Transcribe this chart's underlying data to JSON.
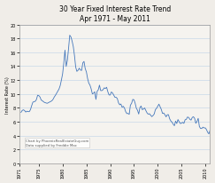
{
  "title_line1": "30 Year Fixed Interest Rate Trend",
  "title_line2": "Apr 1971 - May 2011",
  "ylabel": "Interest Rate (%)",
  "xlim_years": [
    1971,
    2011
  ],
  "ylim": [
    0,
    20
  ],
  "yticks": [
    0,
    2,
    4,
    6,
    8,
    10,
    12,
    14,
    16,
    18,
    20
  ],
  "xticks": [
    1971,
    1975,
    1980,
    1985,
    1990,
    1995,
    2000,
    2005,
    2010
  ],
  "line_color": "#4477bb",
  "bg_color": "#f0ede8",
  "plot_bg_color": "#f5f3ef",
  "annotation1": "Chart by PhoenixRealEstateGuy.com",
  "annotation2": "Data supplied by Freddie Mac",
  "grid_color": "#c8d8e8",
  "data_points": [
    [
      1971.25,
      7.33
    ],
    [
      1971.5,
      7.6
    ],
    [
      1971.75,
      7.7
    ],
    [
      1972.0,
      7.6
    ],
    [
      1972.25,
      7.38
    ],
    [
      1972.5,
      7.5
    ],
    [
      1972.75,
      7.44
    ],
    [
      1973.0,
      7.44
    ],
    [
      1973.25,
      7.73
    ],
    [
      1973.5,
      8.3
    ],
    [
      1973.75,
      8.8
    ],
    [
      1974.0,
      8.88
    ],
    [
      1974.25,
      8.92
    ],
    [
      1974.5,
      9.19
    ],
    [
      1974.75,
      9.8
    ],
    [
      1975.0,
      9.75
    ],
    [
      1975.25,
      9.54
    ],
    [
      1975.5,
      9.1
    ],
    [
      1975.75,
      9.01
    ],
    [
      1976.0,
      8.85
    ],
    [
      1976.25,
      8.75
    ],
    [
      1976.5,
      8.7
    ],
    [
      1976.75,
      8.64
    ],
    [
      1977.0,
      8.72
    ],
    [
      1977.25,
      8.82
    ],
    [
      1977.5,
      8.9
    ],
    [
      1977.75,
      9.01
    ],
    [
      1978.0,
      9.22
    ],
    [
      1978.25,
      9.55
    ],
    [
      1978.5,
      9.8
    ],
    [
      1978.75,
      10.1
    ],
    [
      1979.0,
      10.38
    ],
    [
      1979.25,
      10.7
    ],
    [
      1979.5,
      11.2
    ],
    [
      1979.75,
      12.0
    ],
    [
      1980.0,
      12.88
    ],
    [
      1980.25,
      14.45
    ],
    [
      1980.5,
      16.3
    ],
    [
      1980.75,
      13.95
    ],
    [
      1981.0,
      14.8
    ],
    [
      1981.25,
      16.52
    ],
    [
      1981.5,
      18.45
    ],
    [
      1981.75,
      18.2
    ],
    [
      1982.0,
      17.6
    ],
    [
      1982.25,
      16.8
    ],
    [
      1982.5,
      15.5
    ],
    [
      1982.75,
      13.85
    ],
    [
      1983.0,
      13.24
    ],
    [
      1983.25,
      13.4
    ],
    [
      1983.5,
      13.7
    ],
    [
      1983.75,
      13.43
    ],
    [
      1984.0,
      13.38
    ],
    [
      1984.25,
      14.47
    ],
    [
      1984.5,
      14.67
    ],
    [
      1984.75,
      13.64
    ],
    [
      1985.0,
      13.17
    ],
    [
      1985.25,
      12.22
    ],
    [
      1985.5,
      11.55
    ],
    [
      1985.75,
      11.26
    ],
    [
      1986.0,
      10.73
    ],
    [
      1986.25,
      10.0
    ],
    [
      1986.5,
      10.08
    ],
    [
      1986.75,
      10.3
    ],
    [
      1987.0,
      9.2
    ],
    [
      1987.25,
      10.35
    ],
    [
      1987.5,
      10.58
    ],
    [
      1987.75,
      11.26
    ],
    [
      1988.0,
      10.47
    ],
    [
      1988.25,
      10.47
    ],
    [
      1988.5,
      10.6
    ],
    [
      1988.75,
      10.87
    ],
    [
      1989.0,
      10.77
    ],
    [
      1989.25,
      10.95
    ],
    [
      1989.5,
      10.32
    ],
    [
      1989.75,
      9.85
    ],
    [
      1990.0,
      9.83
    ],
    [
      1990.25,
      10.27
    ],
    [
      1990.5,
      10.13
    ],
    [
      1990.75,
      9.8
    ],
    [
      1991.0,
      9.5
    ],
    [
      1991.25,
      9.51
    ],
    [
      1991.5,
      9.32
    ],
    [
      1991.75,
      8.71
    ],
    [
      1992.0,
      8.43
    ],
    [
      1992.25,
      8.54
    ],
    [
      1992.5,
      8.08
    ],
    [
      1992.75,
      8.21
    ],
    [
      1993.0,
      7.96
    ],
    [
      1993.25,
      7.45
    ],
    [
      1993.5,
      7.16
    ],
    [
      1993.75,
      7.18
    ],
    [
      1994.0,
      7.05
    ],
    [
      1994.25,
      8.37
    ],
    [
      1994.5,
      8.63
    ],
    [
      1994.75,
      9.2
    ],
    [
      1995.0,
      9.15
    ],
    [
      1995.25,
      8.64
    ],
    [
      1995.5,
      7.93
    ],
    [
      1995.75,
      7.63
    ],
    [
      1996.0,
      7.09
    ],
    [
      1996.25,
      8.02
    ],
    [
      1996.5,
      8.25
    ],
    [
      1996.75,
      7.72
    ],
    [
      1997.0,
      7.82
    ],
    [
      1997.25,
      7.96
    ],
    [
      1997.5,
      7.59
    ],
    [
      1997.75,
      7.26
    ],
    [
      1998.0,
      7.07
    ],
    [
      1998.25,
      7.14
    ],
    [
      1998.5,
      6.94
    ],
    [
      1998.75,
      6.72
    ],
    [
      1999.0,
      6.87
    ],
    [
      1999.25,
      7.09
    ],
    [
      1999.5,
      7.72
    ],
    [
      1999.75,
      7.92
    ],
    [
      2000.0,
      8.21
    ],
    [
      2000.25,
      8.52
    ],
    [
      2000.5,
      8.15
    ],
    [
      2000.75,
      7.75
    ],
    [
      2001.0,
      7.18
    ],
    [
      2001.25,
      7.24
    ],
    [
      2001.5,
      7.0
    ],
    [
      2001.75,
      6.69
    ],
    [
      2002.0,
      6.99
    ],
    [
      2002.25,
      7.0
    ],
    [
      2002.5,
      6.41
    ],
    [
      2002.75,
      6.09
    ],
    [
      2003.0,
      5.92
    ],
    [
      2003.25,
      5.62
    ],
    [
      2003.5,
      5.41
    ],
    [
      2003.75,
      6.07
    ],
    [
      2004.0,
      5.73
    ],
    [
      2004.25,
      6.3
    ],
    [
      2004.5,
      5.98
    ],
    [
      2004.75,
      5.72
    ],
    [
      2005.0,
      5.78
    ],
    [
      2005.25,
      5.9
    ],
    [
      2005.5,
      5.75
    ],
    [
      2005.75,
      6.27
    ],
    [
      2006.0,
      6.32
    ],
    [
      2006.25,
      6.66
    ],
    [
      2006.5,
      6.6
    ],
    [
      2006.75,
      6.33
    ],
    [
      2007.0,
      6.22
    ],
    [
      2007.25,
      6.6
    ],
    [
      2007.5,
      6.7
    ],
    [
      2007.75,
      6.47
    ],
    [
      2008.0,
      5.76
    ],
    [
      2008.25,
      6.04
    ],
    [
      2008.5,
      6.47
    ],
    [
      2008.75,
      5.29
    ],
    [
      2009.0,
      5.01
    ],
    [
      2009.25,
      5.01
    ],
    [
      2009.5,
      5.2
    ],
    [
      2009.75,
      5.09
    ],
    [
      2010.0,
      5.09
    ],
    [
      2010.25,
      4.84
    ],
    [
      2010.5,
      4.45
    ],
    [
      2010.75,
      4.23
    ],
    [
      2011.0,
      4.81
    ],
    [
      2011.25,
      4.63
    ]
  ]
}
